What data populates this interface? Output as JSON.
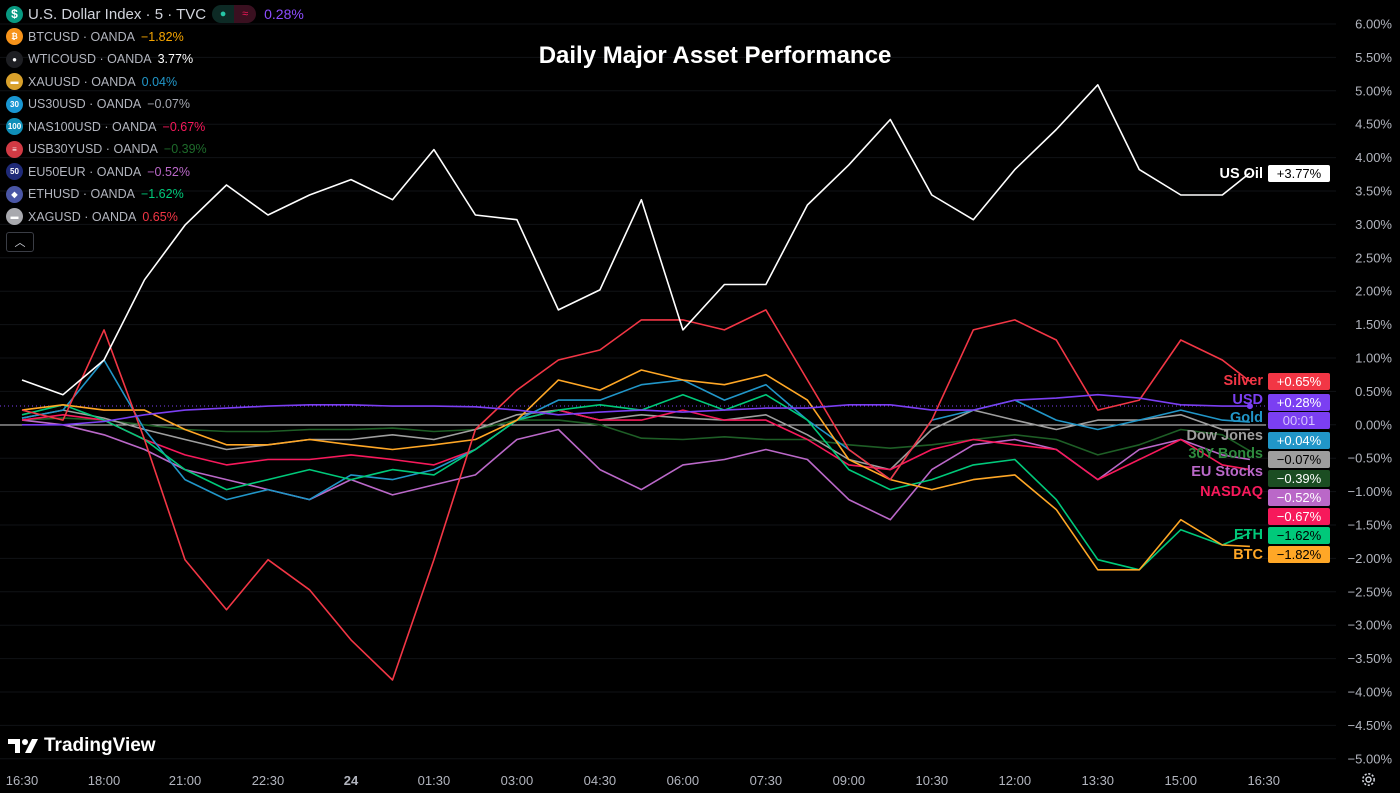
{
  "title": "Daily Major Asset Performance",
  "legend": {
    "main": {
      "symbol": "U.S. Dollar Index · 5 · TVC",
      "value": "0.28%",
      "color": "#8c4dff",
      "icon": "dollar-icon"
    },
    "items": [
      {
        "symbol": "BTCUSD · OANDA",
        "value": "−1.82%",
        "color": "#f7a600",
        "icon": "bitcoin-icon",
        "glyph": "₿",
        "icon_bg": "#f7931a"
      },
      {
        "symbol": "WTICOUSD · OANDA",
        "value": "3.77%",
        "color": "#ffffff",
        "icon": "oil-drop-icon",
        "glyph": "●",
        "icon_bg": "#1e1f23"
      },
      {
        "symbol": "XAUUSD · OANDA",
        "value": "0.04%",
        "color": "#2196c8",
        "icon": "gold-bar-icon",
        "glyph": "▬",
        "icon_bg": "#d9a12b"
      },
      {
        "symbol": "US30USD · OANDA",
        "value": "−0.07%",
        "color": "#a3a6af",
        "icon": "us30-icon",
        "glyph": "30",
        "icon_bg": "#1996d2"
      },
      {
        "symbol": "NAS100USD · OANDA",
        "value": "−0.67%",
        "color": "#f7195b",
        "icon": "nas100-icon",
        "glyph": "100",
        "icon_bg": "#0f8fb8"
      },
      {
        "symbol": "USB30YUSD · OANDA",
        "value": "−0.39%",
        "color": "#1e6b2b",
        "icon": "us-flag-icon",
        "glyph": "≡",
        "icon_bg": "#d23a44"
      },
      {
        "symbol": "EU50EUR · OANDA",
        "value": "−0.52%",
        "color": "#ba68c8",
        "icon": "eu50-icon",
        "glyph": "50",
        "icon_bg": "#1f2a78"
      },
      {
        "symbol": "ETHUSD · OANDA",
        "value": "−1.62%",
        "color": "#00c97a",
        "icon": "ethereum-icon",
        "glyph": "◆",
        "icon_bg": "#4a56a6"
      },
      {
        "symbol": "XAGUSD · OANDA",
        "value": "0.65%",
        "color": "#f23645",
        "icon": "silver-bar-icon",
        "glyph": "▬",
        "icon_bg": "#a8a9ae"
      }
    ],
    "status_dot_color": "#26c6a6",
    "status_glyph": "≈"
  },
  "countdown": "00:01",
  "brand": "TradingView",
  "chart_data": {
    "type": "line",
    "title": "Daily Major Asset Performance",
    "ylim": [
      -5.0,
      6.0
    ],
    "y_ticks": [
      "6.00%",
      "5.50%",
      "5.00%",
      "4.50%",
      "4.00%",
      "3.50%",
      "3.00%",
      "2.50%",
      "2.00%",
      "1.50%",
      "1.00%",
      "0.50%",
      "0.00%",
      "−0.50%",
      "−1.00%",
      "−1.50%",
      "−2.00%",
      "−2.50%",
      "−3.00%",
      "−3.50%",
      "−4.00%",
      "−4.50%",
      "−5.00%"
    ],
    "x_ticks": [
      "16:30",
      "18:00",
      "21:00",
      "22:30",
      "24",
      "01:30",
      "03:00",
      "04:30",
      "06:00",
      "07:30",
      "09:00",
      "10:30",
      "12:00",
      "13:30",
      "15:00",
      "16:30"
    ],
    "grid": true,
    "x": [
      "16:30",
      "17:15",
      "18:00",
      "19:30",
      "21:00",
      "21:45",
      "22:30",
      "23:15",
      "00:00",
      "00:45",
      "01:30",
      "02:15",
      "03:00",
      "03:45",
      "04:30",
      "05:15",
      "06:00",
      "06:45",
      "07:30",
      "08:15",
      "09:00",
      "09:45",
      "10:30",
      "11:15",
      "12:00",
      "12:45",
      "13:30",
      "14:15",
      "15:00",
      "15:45",
      "16:15"
    ],
    "series": [
      {
        "name": "US Oil",
        "last": "+3.77%",
        "color": "#ffffff",
        "badge_text": "#000000",
        "values": [
          0.67,
          0.45,
          0.97,
          2.17,
          2.99,
          3.59,
          3.14,
          3.44,
          3.67,
          3.37,
          4.12,
          3.14,
          3.07,
          1.72,
          2.02,
          3.37,
          1.42,
          2.1,
          2.1,
          3.29,
          3.89,
          4.57,
          3.44,
          3.07,
          3.82,
          4.42,
          5.09,
          3.82,
          3.44,
          3.44,
          3.77
        ]
      },
      {
        "name": "Silver",
        "last": "+0.65%",
        "color": "#f23645",
        "badge_text": "#ffffff",
        "values": [
          0.22,
          0.07,
          1.42,
          -0.22,
          -2.02,
          -2.77,
          -2.02,
          -2.47,
          -3.22,
          -3.82,
          -2.02,
          -0.07,
          0.52,
          0.97,
          1.12,
          1.57,
          1.57,
          1.42,
          1.72,
          0.67,
          -0.37,
          -0.82,
          0.07,
          1.42,
          1.57,
          1.27,
          0.22,
          0.37,
          1.27,
          0.97,
          0.65
        ]
      },
      {
        "name": "USD",
        "last": "+0.28%",
        "color": "#7b3ff2",
        "badge_text": "#ffffff",
        "values": [
          0,
          0,
          0.05,
          0.15,
          0.22,
          0.25,
          0.28,
          0.3,
          0.3,
          0.28,
          0.28,
          0.27,
          0.22,
          0.15,
          0.19,
          0.22,
          0.19,
          0.22,
          0.25,
          0.25,
          0.3,
          0.3,
          0.22,
          0.22,
          0.37,
          0.4,
          0.45,
          0.4,
          0.3,
          0.28,
          0.28
        ]
      },
      {
        "name": "Gold",
        "last": "+0.04%",
        "color": "#2196c8",
        "badge_text": "#ffffff",
        "values": [
          0.1,
          0.22,
          0.97,
          -0.07,
          -0.82,
          -1.12,
          -0.97,
          -1.12,
          -0.75,
          -0.82,
          -0.67,
          -0.37,
          0.07,
          0.37,
          0.37,
          0.6,
          0.67,
          0.37,
          0.6,
          0.07,
          -0.37,
          -0.82,
          0.07,
          0.22,
          0.37,
          0.07,
          -0.07,
          0.07,
          0.22,
          0.07,
          0.04
        ]
      },
      {
        "name": "Dow Jones",
        "last": "−0.07%",
        "color": "#9e9e9e",
        "badge_text": "#000000",
        "values": [
          0.1,
          0.22,
          0.1,
          -0.07,
          -0.22,
          -0.37,
          -0.3,
          -0.22,
          -0.22,
          -0.15,
          -0.22,
          -0.07,
          0.15,
          0.22,
          0.07,
          0.15,
          0.1,
          0.07,
          0.15,
          -0.15,
          -0.52,
          -0.67,
          -0.07,
          0.22,
          0.07,
          -0.07,
          0.07,
          0.07,
          0.15,
          -0.07,
          -0.07
        ]
      },
      {
        "name": "30Y Bonds",
        "last": "−0.39%",
        "color": "#1e5e26",
        "label_color": "#2e8b3e",
        "badge_text": "#ffffff",
        "values": [
          0.07,
          0.1,
          0.07,
          0,
          -0.07,
          -0.1,
          -0.1,
          -0.07,
          -0.07,
          -0.05,
          -0.1,
          -0.07,
          0.07,
          0.07,
          0,
          -0.2,
          -0.22,
          -0.18,
          -0.22,
          -0.22,
          -0.3,
          -0.35,
          -0.3,
          -0.22,
          -0.15,
          -0.22,
          -0.45,
          -0.3,
          -0.07,
          -0.15,
          -0.39
        ]
      },
      {
        "name": "EU Stocks",
        "last": "−0.52%",
        "color": "#ba68c8",
        "badge_text": "#ffffff",
        "values": [
          0.07,
          0,
          -0.15,
          -0.37,
          -0.67,
          -0.82,
          -0.97,
          -1.12,
          -0.82,
          -1.05,
          -0.9,
          -0.75,
          -0.22,
          -0.07,
          -0.67,
          -0.97,
          -0.6,
          -0.52,
          -0.37,
          -0.52,
          -1.12,
          -1.42,
          -0.67,
          -0.3,
          -0.22,
          -0.37,
          -0.82,
          -0.37,
          -0.22,
          -0.45,
          -0.52
        ]
      },
      {
        "name": "NASDAQ",
        "last": "−0.67%",
        "color": "#f7195b",
        "badge_text": "#ffffff",
        "values": [
          0.07,
          0.15,
          0.07,
          -0.22,
          -0.45,
          -0.6,
          -0.52,
          -0.52,
          -0.45,
          -0.52,
          -0.6,
          -0.37,
          0.07,
          0.22,
          0.07,
          0.07,
          0.22,
          0.07,
          0.07,
          -0.22,
          -0.6,
          -0.67,
          -0.37,
          -0.22,
          -0.3,
          -0.37,
          -0.82,
          -0.52,
          -0.22,
          -0.6,
          -0.67
        ]
      },
      {
        "name": "ETH",
        "last": "−1.62%",
        "color": "#00c97a",
        "badge_text": "#000000",
        "values": [
          0.15,
          0.3,
          0.07,
          -0.22,
          -0.67,
          -0.97,
          -0.82,
          -0.67,
          -0.82,
          -0.67,
          -0.75,
          -0.37,
          0.07,
          0.22,
          0.3,
          0.22,
          0.45,
          0.22,
          0.45,
          0.07,
          -0.67,
          -0.97,
          -0.82,
          -0.6,
          -0.52,
          -1.12,
          -2.02,
          -2.17,
          -1.57,
          -1.8,
          -1.62
        ]
      },
      {
        "name": "BTC",
        "last": "−1.82%",
        "color": "#ffa726",
        "badge_text": "#000000",
        "values": [
          0.22,
          0.3,
          0.22,
          0.22,
          -0.07,
          -0.3,
          -0.3,
          -0.22,
          -0.3,
          -0.37,
          -0.3,
          -0.22,
          0.07,
          0.67,
          0.52,
          0.82,
          0.67,
          0.6,
          0.75,
          0.37,
          -0.52,
          -0.82,
          -0.97,
          -0.82,
          -0.75,
          -1.27,
          -2.17,
          -2.17,
          -1.42,
          -1.8,
          -1.82
        ]
      }
    ]
  }
}
